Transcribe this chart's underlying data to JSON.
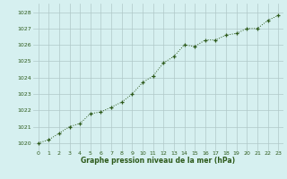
{
  "x": [
    0,
    1,
    2,
    3,
    4,
    5,
    6,
    7,
    8,
    9,
    10,
    11,
    12,
    13,
    14,
    15,
    16,
    17,
    18,
    19,
    20,
    21,
    22,
    23
  ],
  "y": [
    1020.0,
    1020.2,
    1020.6,
    1021.0,
    1021.2,
    1021.8,
    1021.9,
    1022.2,
    1022.5,
    1023.0,
    1023.7,
    1024.1,
    1024.9,
    1025.3,
    1026.0,
    1025.9,
    1026.3,
    1026.3,
    1026.6,
    1026.7,
    1027.0,
    1027.0,
    1027.5,
    1027.8
  ],
  "ylim": [
    1019.5,
    1028.5
  ],
  "xlim": [
    -0.5,
    23.5
  ],
  "yticks": [
    1020,
    1021,
    1022,
    1023,
    1024,
    1025,
    1026,
    1027,
    1028
  ],
  "xticks": [
    0,
    1,
    2,
    3,
    4,
    5,
    6,
    7,
    8,
    9,
    10,
    11,
    12,
    13,
    14,
    15,
    16,
    17,
    18,
    19,
    20,
    21,
    22,
    23
  ],
  "xlabel": "Graphe pression niveau de la mer (hPa)",
  "line_color": "#2d5a1b",
  "marker_color": "#2d5a1b",
  "bg_color": "#d6f0f0",
  "grid_color": "#b0c8c8",
  "tick_label_color": "#2d5a1b",
  "xlabel_color": "#2d5a1b"
}
